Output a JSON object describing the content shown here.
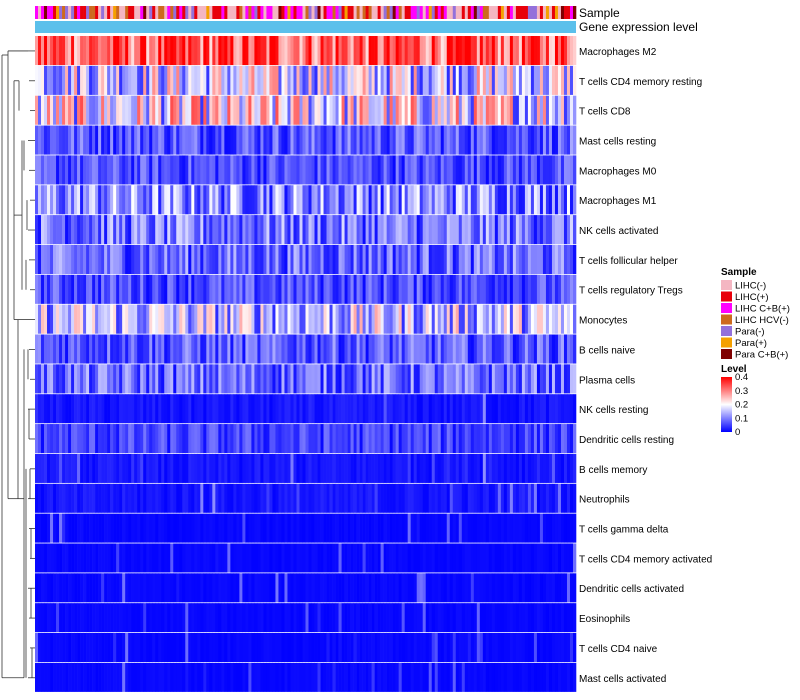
{
  "chart_data": {
    "type": "heatmap",
    "title": "",
    "annotation_tracks": [
      {
        "name": "Sample",
        "kind": "categorical"
      },
      {
        "name": "Gene expression level",
        "kind": "continuous"
      }
    ],
    "rows": [
      {
        "label": "Macrophages M2",
        "mean": 0.33
      },
      {
        "label": "T cells CD4 memory resting",
        "mean": 0.17
      },
      {
        "label": "T cells CD8",
        "mean": 0.19
      },
      {
        "label": "Mast cells resting",
        "mean": 0.07
      },
      {
        "label": "Macrophages M0",
        "mean": 0.06
      },
      {
        "label": "Macrophages M1",
        "mean": 0.11
      },
      {
        "label": "NK cells activated",
        "mean": 0.09
      },
      {
        "label": "T cells follicular helper",
        "mean": 0.08
      },
      {
        "label": "T cells regulatory  Tregs",
        "mean": 0.06
      },
      {
        "label": "Monocytes",
        "mean": 0.15
      },
      {
        "label": "B cells naive",
        "mean": 0.07
      },
      {
        "label": "Plasma cells",
        "mean": 0.08
      },
      {
        "label": "NK cells resting",
        "mean": 0.03
      },
      {
        "label": "Dendritic cells resting",
        "mean": 0.05
      },
      {
        "label": "B cells memory",
        "mean": 0.03
      },
      {
        "label": "Neutrophils",
        "mean": 0.03
      },
      {
        "label": "T cells gamma delta",
        "mean": 0.01
      },
      {
        "label": "T cells CD4 memory activated",
        "mean": 0.01
      },
      {
        "label": "Dendritic cells activated",
        "mean": 0.01
      },
      {
        "label": "Eosinophils",
        "mean": 0.01
      },
      {
        "label": "T cells CD4 naive",
        "mean": 0.01
      },
      {
        "label": "Mast cells activated",
        "mean": 0.01
      }
    ],
    "legend_sample": {
      "title": "Sample",
      "items": [
        {
          "label": "LIHC(-)",
          "color": "#f4b6c2"
        },
        {
          "label": "LIHC(+)",
          "color": "#e8000b"
        },
        {
          "label": "LIHC C+B(+)",
          "color": "#ff00ff"
        },
        {
          "label": "LIHC HCV(-)",
          "color": "#cd6a1e"
        },
        {
          "label": "Para(-)",
          "color": "#9370db"
        },
        {
          "label": "Para(+)",
          "color": "#f5a000"
        },
        {
          "label": "Para C+B(+)",
          "color": "#7f0000"
        }
      ]
    },
    "legend_level": {
      "title": "Level",
      "ticks": [
        "0.4",
        "0.3",
        "0.2",
        "0.1",
        "0"
      ],
      "range": [
        0,
        0.4
      ],
      "colors": [
        "#0000ff",
        "#ffffff",
        "#ff0000"
      ]
    },
    "expression_track_color": "#5bc0eb"
  }
}
